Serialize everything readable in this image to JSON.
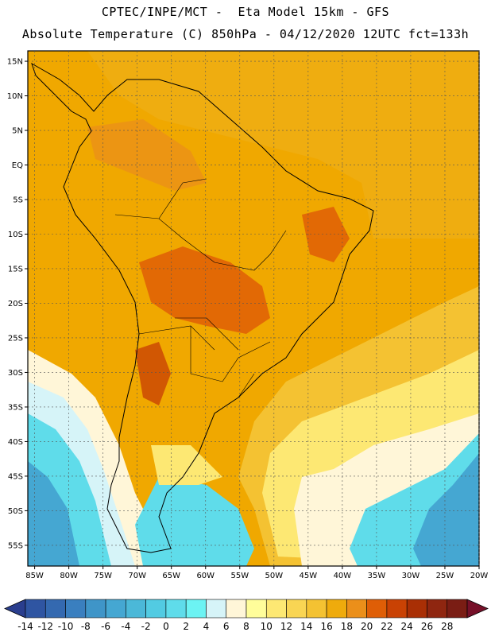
{
  "header": {
    "line1": "CPTEC/INPE/MCT -  Eta Model 15km - GFS",
    "line2": "Absolute Temperature (C) 850hPa - 04/12/2020 12UTC fct=133h"
  },
  "map": {
    "lat_labels": [
      "15N",
      "10N",
      "5N",
      "EQ",
      "5S",
      "10S",
      "15S",
      "20S",
      "25S",
      "30S",
      "35S",
      "40S",
      "45S",
      "50S",
      "55S"
    ],
    "lon_labels": [
      "85W",
      "80W",
      "75W",
      "70W",
      "65W",
      "60W",
      "55W",
      "50W",
      "45W",
      "40W",
      "35W",
      "30W",
      "25W",
      "20W"
    ],
    "lat_range": [
      -58,
      16.5
    ],
    "lon_range": [
      -86,
      -20
    ],
    "background_color": "#f0a800"
  },
  "colorbar": {
    "labels": [
      "-14",
      "-12",
      "-10",
      "-8",
      "-6",
      "-4",
      "-2",
      "0",
      "2",
      "4",
      "6",
      "8",
      "10",
      "12",
      "14",
      "16",
      "18",
      "20",
      "22",
      "24",
      "26",
      "28"
    ],
    "colors": [
      "#2a3e8e",
      "#2f55a2",
      "#3469b0",
      "#3a7fbf",
      "#3f95c8",
      "#45a7d2",
      "#4bb8d8",
      "#52cbe2",
      "#5fdcea",
      "#6cf3f3",
      "#d6f4f8",
      "#fff6d8",
      "#fffd9a",
      "#fde873",
      "#f9d553",
      "#f4c232",
      "#efab0c",
      "#eb8f1a",
      "#df5e06",
      "#c94204",
      "#a92f05",
      "#8f2610",
      "#7a1d14",
      "#761029"
    ]
  }
}
